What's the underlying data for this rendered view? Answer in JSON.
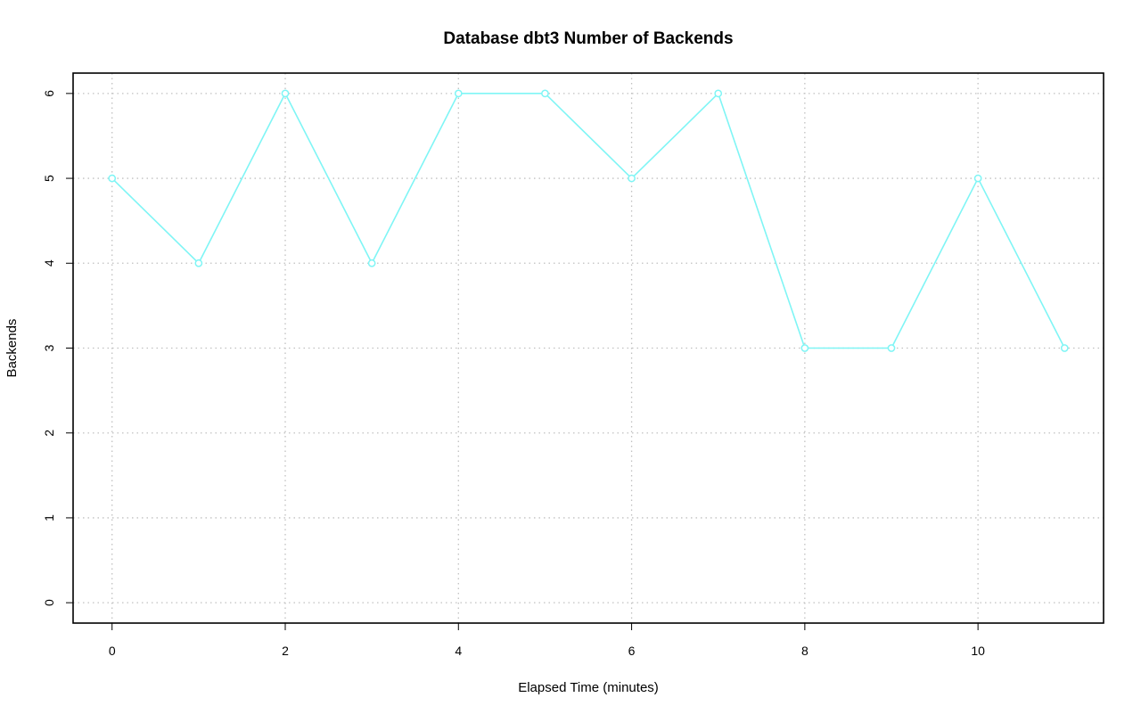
{
  "chart_data": {
    "type": "line",
    "title": "Database dbt3 Number of Backends",
    "xlabel": "Elapsed Time (minutes)",
    "ylabel": "Backends",
    "x": [
      0,
      1,
      2,
      3,
      4,
      5,
      6,
      7,
      8,
      9,
      10,
      11
    ],
    "series": [
      {
        "values": [
          5,
          4,
          6,
          4,
          6,
          6,
          5,
          6,
          3,
          3,
          5,
          3
        ],
        "color": "#7ff5f5",
        "marker": "open-circle"
      }
    ],
    "xlim": [
      -0.45,
      11.45
    ],
    "ylim": [
      -0.24,
      6.24
    ],
    "xticks": [
      0,
      2,
      4,
      6,
      8,
      10
    ],
    "yticks": [
      0,
      1,
      2,
      3,
      4,
      5,
      6
    ],
    "grid": true,
    "grid_style": "dotted",
    "grid_color": "#c0c0c0",
    "legend": "none"
  }
}
